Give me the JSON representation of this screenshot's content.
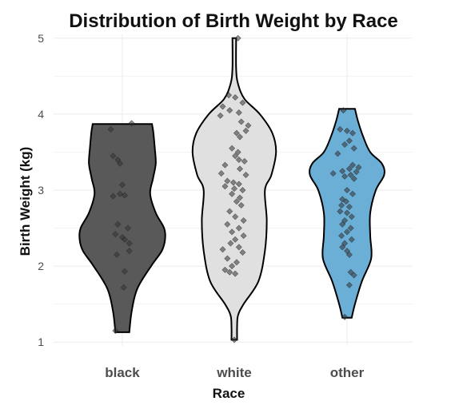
{
  "chart_data": {
    "type": "violin",
    "title": "Distribution of Birth Weight by Race",
    "xlabel": "Race",
    "ylabel": "Birth Weight (kg)",
    "ylim": [
      0.95,
      5.05
    ],
    "yticks": [
      1,
      2,
      3,
      4,
      5
    ],
    "grid": true,
    "legend": "none",
    "categories": [
      "black",
      "white",
      "other"
    ],
    "colors": [
      "#595959",
      "#e0e0e0",
      "#6baed6"
    ],
    "violins": [
      {
        "name": "black",
        "density": [
          [
            1.13,
            0.15
          ],
          [
            1.4,
            0.2
          ],
          [
            1.7,
            0.32
          ],
          [
            2.0,
            0.62
          ],
          [
            2.2,
            0.85
          ],
          [
            2.35,
            0.92
          ],
          [
            2.5,
            0.9
          ],
          [
            2.7,
            0.72
          ],
          [
            2.95,
            0.6
          ],
          [
            3.15,
            0.66
          ],
          [
            3.35,
            0.72
          ],
          [
            3.55,
            0.7
          ],
          [
            3.75,
            0.67
          ],
          [
            3.87,
            0.64
          ]
        ],
        "points": [
          {
            "x": -0.25,
            "y": 3.8
          },
          {
            "x": 0.2,
            "y": 3.88
          },
          {
            "x": -0.2,
            "y": 3.45
          },
          {
            "x": -0.1,
            "y": 3.4
          },
          {
            "x": -0.05,
            "y": 3.35
          },
          {
            "x": 0.0,
            "y": 3.07
          },
          {
            "x": -0.05,
            "y": 2.95
          },
          {
            "x": 0.05,
            "y": 2.93
          },
          {
            "x": -0.2,
            "y": 2.92
          },
          {
            "x": -0.1,
            "y": 2.55
          },
          {
            "x": 0.12,
            "y": 2.5
          },
          {
            "x": -0.15,
            "y": 2.42
          },
          {
            "x": 0.0,
            "y": 2.38
          },
          {
            "x": 0.05,
            "y": 2.35
          },
          {
            "x": 0.15,
            "y": 2.3
          },
          {
            "x": -0.12,
            "y": 2.15
          },
          {
            "x": 0.15,
            "y": 2.2
          },
          {
            "x": 0.05,
            "y": 1.93
          },
          {
            "x": 0.03,
            "y": 1.72
          },
          {
            "x": -0.15,
            "y": 1.15
          }
        ]
      },
      {
        "name": "white",
        "density": [
          [
            1.03,
            0.06
          ],
          [
            1.2,
            0.06
          ],
          [
            1.35,
            0.08
          ],
          [
            1.5,
            0.2
          ],
          [
            1.8,
            0.52
          ],
          [
            2.2,
            0.66
          ],
          [
            2.6,
            0.7
          ],
          [
            3.0,
            0.66
          ],
          [
            3.2,
            0.8
          ],
          [
            3.5,
            0.9
          ],
          [
            3.75,
            0.82
          ],
          [
            4.0,
            0.55
          ],
          [
            4.2,
            0.22
          ],
          [
            4.4,
            0.08
          ],
          [
            4.6,
            0.04
          ],
          [
            5.0,
            0.04
          ]
        ],
        "points": [
          {
            "x": 0.08,
            "y": 5.0
          },
          {
            "x": -0.12,
            "y": 4.25
          },
          {
            "x": 0.02,
            "y": 4.22
          },
          {
            "x": 0.18,
            "y": 4.15
          },
          {
            "x": -0.25,
            "y": 4.1
          },
          {
            "x": -0.1,
            "y": 4.05
          },
          {
            "x": 0.1,
            "y": 4.02
          },
          {
            "x": -0.3,
            "y": 3.98
          },
          {
            "x": 0.15,
            "y": 3.9
          },
          {
            "x": 0.3,
            "y": 3.85
          },
          {
            "x": 0.25,
            "y": 3.78
          },
          {
            "x": 0.05,
            "y": 3.75
          },
          {
            "x": 0.12,
            "y": 3.7
          },
          {
            "x": -0.05,
            "y": 3.55
          },
          {
            "x": 0.08,
            "y": 3.5
          },
          {
            "x": 0.02,
            "y": 3.45
          },
          {
            "x": 0.1,
            "y": 3.4
          },
          {
            "x": 0.22,
            "y": 3.38
          },
          {
            "x": -0.2,
            "y": 3.33
          },
          {
            "x": 0.12,
            "y": 3.28
          },
          {
            "x": -0.28,
            "y": 3.22
          },
          {
            "x": 0.25,
            "y": 3.2
          },
          {
            "x": -0.15,
            "y": 3.12
          },
          {
            "x": -0.02,
            "y": 3.1
          },
          {
            "x": 0.1,
            "y": 3.08
          },
          {
            "x": -0.2,
            "y": 3.05
          },
          {
            "x": 0.0,
            "y": 3.02
          },
          {
            "x": 0.18,
            "y": 3.0
          },
          {
            "x": -0.05,
            "y": 2.95
          },
          {
            "x": 0.12,
            "y": 2.9
          },
          {
            "x": 0.05,
            "y": 2.85
          },
          {
            "x": 0.15,
            "y": 2.8
          },
          {
            "x": -0.1,
            "y": 2.72
          },
          {
            "x": 0.02,
            "y": 2.65
          },
          {
            "x": 0.2,
            "y": 2.6
          },
          {
            "x": -0.15,
            "y": 2.55
          },
          {
            "x": 0.1,
            "y": 2.5
          },
          {
            "x": -0.05,
            "y": 2.45
          },
          {
            "x": 0.2,
            "y": 2.4
          },
          {
            "x": 0.02,
            "y": 2.35
          },
          {
            "x": -0.08,
            "y": 2.3
          },
          {
            "x": 0.1,
            "y": 2.25
          },
          {
            "x": -0.25,
            "y": 2.22
          },
          {
            "x": 0.18,
            "y": 2.18
          },
          {
            "x": -0.15,
            "y": 2.1
          },
          {
            "x": 0.05,
            "y": 2.05
          },
          {
            "x": -0.05,
            "y": 2.0
          },
          {
            "x": -0.2,
            "y": 1.95
          },
          {
            "x": -0.1,
            "y": 1.92
          },
          {
            "x": 0.02,
            "y": 1.9
          },
          {
            "x": 0.0,
            "y": 1.03
          }
        ]
      },
      {
        "name": "other",
        "density": [
          [
            1.32,
            0.1
          ],
          [
            1.5,
            0.17
          ],
          [
            1.8,
            0.32
          ],
          [
            2.1,
            0.52
          ],
          [
            2.4,
            0.5
          ],
          [
            2.7,
            0.5
          ],
          [
            3.0,
            0.62
          ],
          [
            3.2,
            0.8
          ],
          [
            3.35,
            0.75
          ],
          [
            3.5,
            0.5
          ],
          [
            3.7,
            0.35
          ],
          [
            3.9,
            0.24
          ],
          [
            4.07,
            0.17
          ]
        ],
        "points": [
          {
            "x": -0.08,
            "y": 4.05
          },
          {
            "x": -0.15,
            "y": 3.8
          },
          {
            "x": 0.0,
            "y": 3.78
          },
          {
            "x": 0.12,
            "y": 3.75
          },
          {
            "x": 0.05,
            "y": 3.65
          },
          {
            "x": -0.05,
            "y": 3.6
          },
          {
            "x": 0.15,
            "y": 3.55
          },
          {
            "x": -0.2,
            "y": 3.48
          },
          {
            "x": 0.12,
            "y": 3.33
          },
          {
            "x": 0.25,
            "y": 3.3
          },
          {
            "x": 0.05,
            "y": 3.28
          },
          {
            "x": -0.1,
            "y": 3.25
          },
          {
            "x": 0.2,
            "y": 3.24
          },
          {
            "x": -0.3,
            "y": 3.22
          },
          {
            "x": 0.08,
            "y": 3.2
          },
          {
            "x": -0.05,
            "y": 3.18
          },
          {
            "x": 0.15,
            "y": 3.15
          },
          {
            "x": 0.0,
            "y": 3.0
          },
          {
            "x": 0.12,
            "y": 2.95
          },
          {
            "x": -0.1,
            "y": 2.88
          },
          {
            "x": -0.02,
            "y": 2.85
          },
          {
            "x": -0.12,
            "y": 2.8
          },
          {
            "x": 0.05,
            "y": 2.78
          },
          {
            "x": -0.15,
            "y": 2.72
          },
          {
            "x": 0.0,
            "y": 2.7
          },
          {
            "x": 0.1,
            "y": 2.65
          },
          {
            "x": -0.05,
            "y": 2.6
          },
          {
            "x": -0.1,
            "y": 2.55
          },
          {
            "x": 0.08,
            "y": 2.5
          },
          {
            "x": 0.0,
            "y": 2.45
          },
          {
            "x": -0.12,
            "y": 2.4
          },
          {
            "x": 0.1,
            "y": 2.35
          },
          {
            "x": -0.05,
            "y": 2.3
          },
          {
            "x": -0.1,
            "y": 2.25
          },
          {
            "x": 0.0,
            "y": 2.2
          },
          {
            "x": 0.05,
            "y": 2.15
          },
          {
            "x": 0.08,
            "y": 1.92
          },
          {
            "x": 0.15,
            "y": 1.88
          },
          {
            "x": 0.05,
            "y": 1.75
          },
          {
            "x": -0.05,
            "y": 1.33
          }
        ]
      }
    ]
  }
}
